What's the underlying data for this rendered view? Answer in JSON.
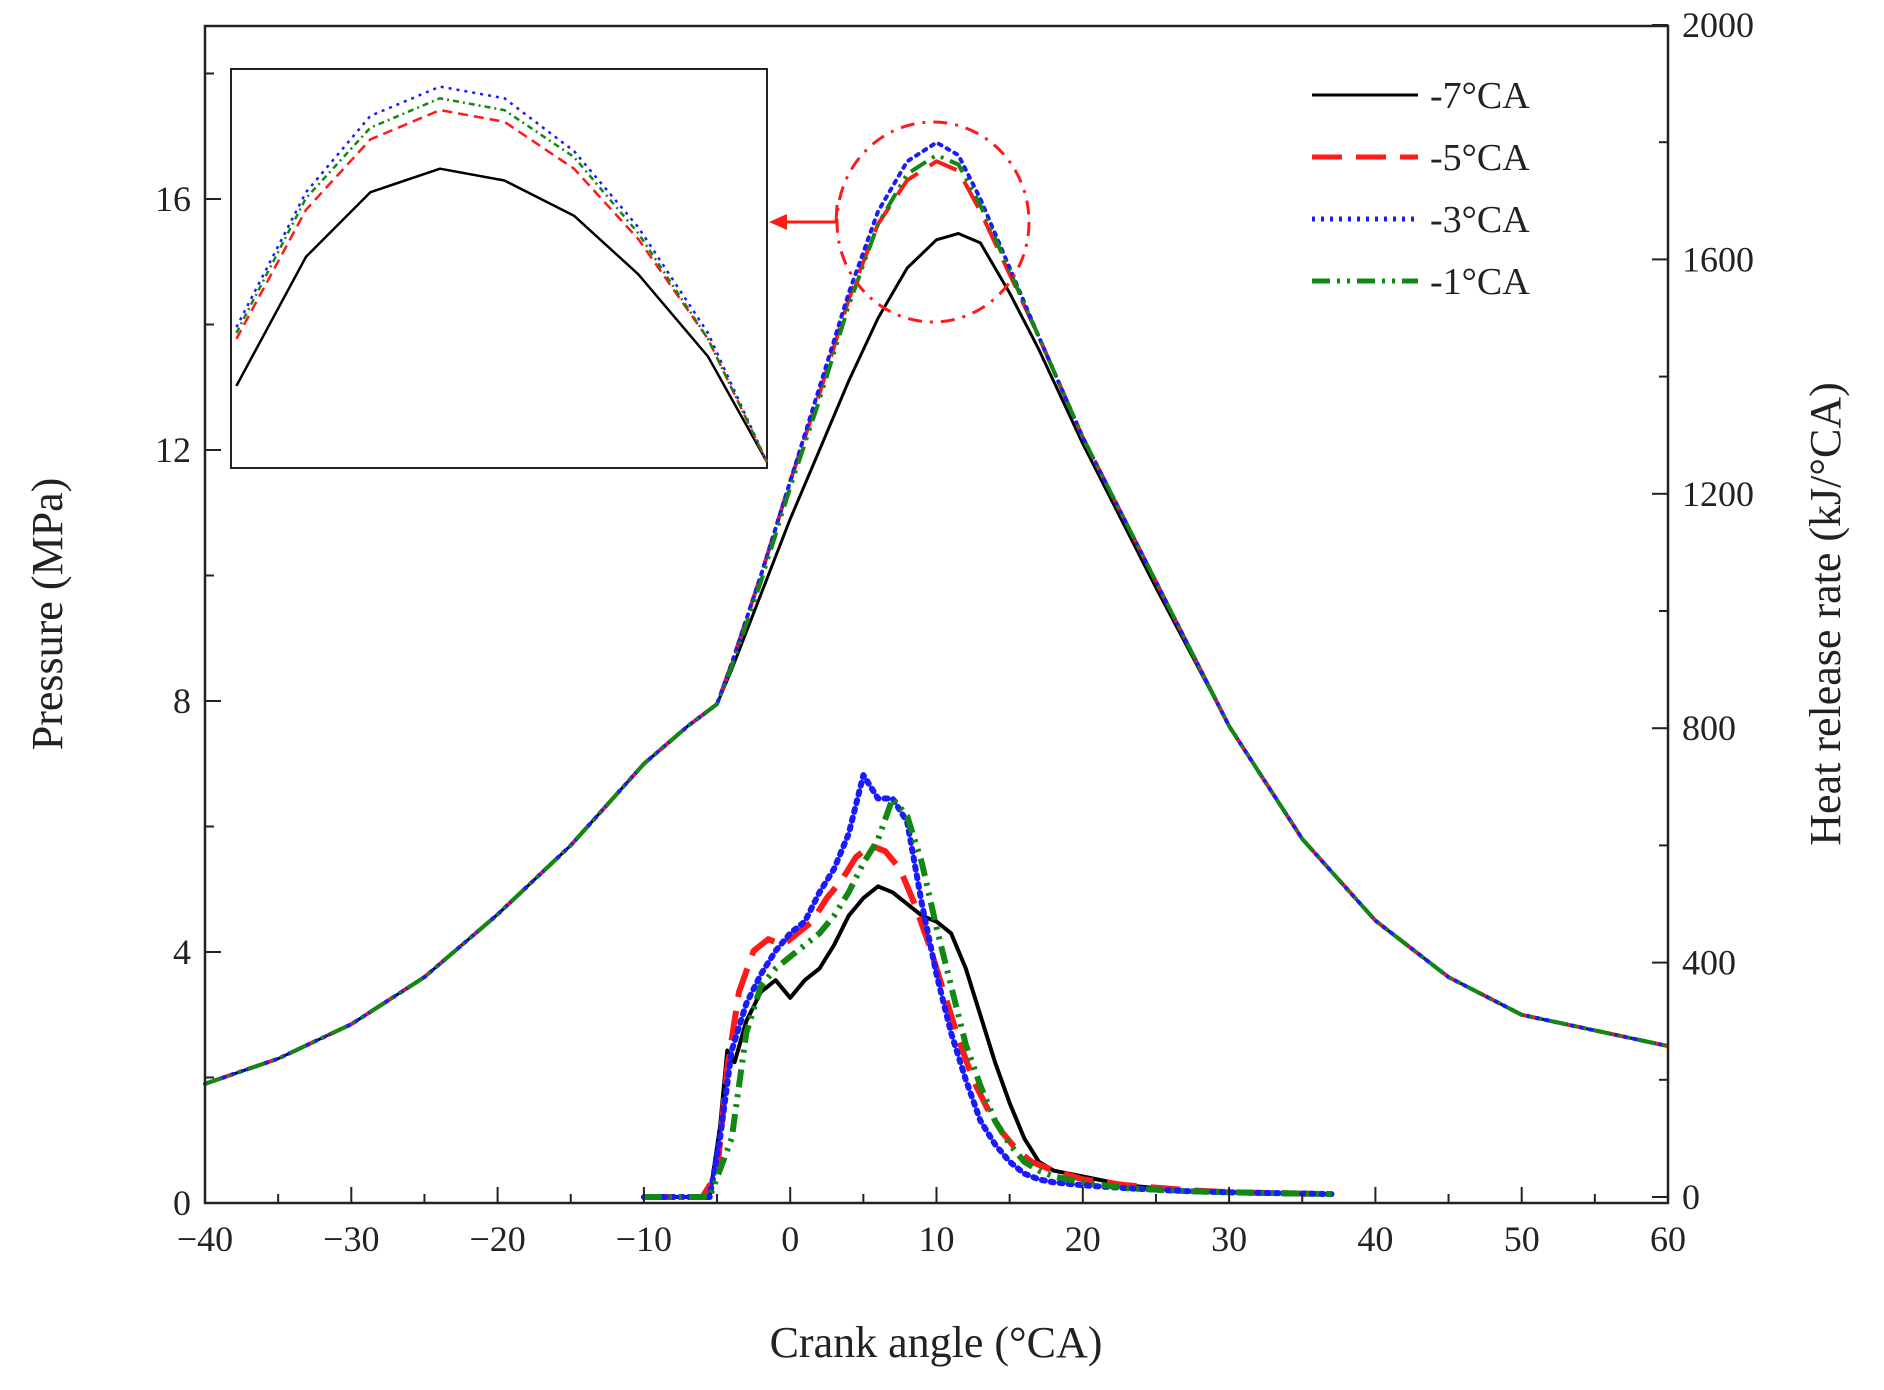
{
  "chart_data": {
    "type": "line",
    "xlabel": "Crank angle (°CA)",
    "ylabel_left": "Pressure (MPa)",
    "ylabel_right": "Heat release rate (kJ/°CA)",
    "xlim": [
      -40,
      60
    ],
    "ylim_left": [
      0,
      19
    ],
    "ylim_right": [
      0,
      2000
    ],
    "x_ticks": [
      -40,
      -30,
      -20,
      -10,
      0,
      10,
      20,
      30,
      40,
      50,
      60
    ],
    "x_tick_labels": [
      "−40",
      "−30",
      "−20",
      "−10",
      "0",
      "10",
      "20",
      "30",
      "40",
      "50",
      "60"
    ],
    "y_left_ticks": [
      0,
      4,
      8,
      12,
      16
    ],
    "y_left_tick_labels": [
      "0",
      "4",
      "8",
      "12",
      "16"
    ],
    "y_right_ticks": [
      0,
      400,
      800,
      1200,
      1600,
      2000
    ],
    "y_right_tick_labels": [
      "0",
      "400",
      "800",
      "1200",
      "1600",
      "2000"
    ],
    "legend_position": "top-right",
    "series": [
      {
        "name": "-7°CA",
        "color": "#000000",
        "dash": "solid",
        "pressure": {
          "x": [
            -40,
            -35,
            -30,
            -25,
            -20,
            -15,
            -10,
            -7,
            -5,
            -4,
            -2,
            0,
            2,
            4,
            6,
            8,
            10,
            11.5,
            13,
            15,
            17,
            20,
            25,
            30,
            35,
            40,
            45,
            50,
            55,
            60
          ],
          "y": [
            1.9,
            2.3,
            2.85,
            3.6,
            4.6,
            5.7,
            7.0,
            7.6,
            7.95,
            8.5,
            9.7,
            10.9,
            12.0,
            13.1,
            14.1,
            14.9,
            15.35,
            15.45,
            15.3,
            14.5,
            13.6,
            12.1,
            9.8,
            7.6,
            5.8,
            4.5,
            3.6,
            3.0,
            2.75,
            2.5
          ]
        },
        "hrr": {
          "x": [
            -10,
            -5.5,
            -4.8,
            -4.3,
            -3.8,
            -3,
            -2,
            -1,
            0,
            1,
            2,
            3,
            4,
            5,
            6,
            7,
            8,
            9,
            10,
            11,
            12,
            13,
            14,
            15,
            16,
            17,
            18,
            20,
            23,
            27,
            30,
            37
          ],
          "y": [
            0,
            0,
            120,
            250,
            230,
            300,
            350,
            370,
            340,
            370,
            390,
            430,
            480,
            510,
            530,
            520,
            500,
            480,
            470,
            450,
            390,
            310,
            230,
            160,
            100,
            60,
            45,
            35,
            20,
            10,
            8,
            5
          ]
        }
      },
      {
        "name": "-5°CA",
        "color": "#ff1a1a",
        "dash": "dashed",
        "pressure": {
          "x": [
            -40,
            -35,
            -30,
            -25,
            -20,
            -15,
            -10,
            -7,
            -5,
            -4,
            -2,
            0,
            2,
            4,
            6,
            8,
            10,
            11.5,
            13,
            15,
            17,
            20,
            25,
            30,
            35,
            40,
            45,
            50,
            55,
            60
          ],
          "y": [
            1.9,
            2.3,
            2.85,
            3.6,
            4.6,
            5.7,
            7.0,
            7.6,
            7.95,
            8.6,
            10.0,
            11.5,
            12.9,
            14.4,
            15.6,
            16.3,
            16.6,
            16.45,
            15.8,
            14.8,
            13.8,
            12.2,
            9.9,
            7.6,
            5.8,
            4.5,
            3.6,
            3.0,
            2.75,
            2.5
          ]
        },
        "hrr": {
          "x": [
            -10,
            -6,
            -5,
            -4.3,
            -3.5,
            -2.5,
            -1.5,
            -0.5,
            0.5,
            1.5,
            2.5,
            3.5,
            4.5,
            5.5,
            6.5,
            7.5,
            8.5,
            9.5,
            10.5,
            11.5,
            12.5,
            13.5,
            14.5,
            15.5,
            16.5,
            18,
            20,
            23,
            27,
            30,
            37
          ],
          "y": [
            0,
            0,
            40,
            220,
            350,
            420,
            440,
            430,
            450,
            470,
            510,
            540,
            580,
            600,
            590,
            560,
            500,
            430,
            350,
            270,
            200,
            150,
            110,
            80,
            60,
            45,
            30,
            20,
            12,
            8,
            5
          ]
        }
      },
      {
        "name": "-3°CA",
        "color": "#1a1aff",
        "dash": "dotted",
        "pressure": {
          "x": [
            -40,
            -35,
            -30,
            -25,
            -20,
            -15,
            -10,
            -7,
            -5,
            -4,
            -2,
            0,
            2,
            4,
            6,
            8,
            10,
            11.5,
            13,
            15,
            17,
            20,
            25,
            30,
            35,
            40,
            45,
            50,
            55,
            60
          ],
          "y": [
            1.9,
            2.3,
            2.85,
            3.6,
            4.6,
            5.7,
            7.0,
            7.6,
            7.95,
            8.6,
            10.0,
            11.5,
            13.0,
            14.5,
            15.8,
            16.6,
            16.9,
            16.7,
            16.0,
            14.9,
            13.8,
            12.2,
            9.9,
            7.6,
            5.8,
            4.5,
            3.6,
            3.0,
            2.75,
            2.5
          ]
        },
        "hrr": {
          "x": [
            -10,
            -5.5,
            -4.8,
            -4,
            -3,
            -2,
            -1,
            0,
            1,
            2,
            3,
            4,
            5,
            6,
            7,
            8,
            9,
            10,
            11,
            12,
            13,
            14,
            15,
            16,
            17,
            18,
            20,
            23,
            27,
            30,
            37
          ],
          "y": [
            0,
            0,
            100,
            250,
            330,
            380,
            420,
            450,
            470,
            520,
            560,
            620,
            720,
            680,
            680,
            640,
            500,
            380,
            280,
            200,
            130,
            90,
            60,
            40,
            30,
            25,
            20,
            15,
            10,
            8,
            5
          ]
        }
      },
      {
        "name": "-1°CA",
        "color": "#118811",
        "dash": "dash-dot-dot",
        "pressure": {
          "x": [
            -40,
            -35,
            -30,
            -25,
            -20,
            -15,
            -10,
            -7,
            -5,
            -4,
            -2,
            0,
            2,
            4,
            6,
            8,
            10,
            11.5,
            13,
            15,
            17,
            20,
            25,
            30,
            35,
            40,
            45,
            50,
            55,
            60
          ],
          "y": [
            1.9,
            2.3,
            2.85,
            3.6,
            4.6,
            5.7,
            7.0,
            7.6,
            7.95,
            8.55,
            9.9,
            11.4,
            12.8,
            14.3,
            15.6,
            16.4,
            16.7,
            16.55,
            15.9,
            14.85,
            13.8,
            12.2,
            9.9,
            7.6,
            5.8,
            4.5,
            3.6,
            3.0,
            2.75,
            2.5
          ]
        },
        "hrr": {
          "x": [
            -10,
            -5.5,
            -4,
            -3,
            -2,
            -1,
            0,
            1,
            2,
            3,
            4,
            5,
            6,
            7,
            8,
            9,
            10,
            11,
            12,
            13,
            14,
            15,
            16,
            17,
            18,
            20,
            23,
            27,
            30,
            37
          ],
          "y": [
            0,
            0,
            100,
            280,
            360,
            390,
            410,
            430,
            450,
            480,
            520,
            570,
            610,
            680,
            650,
            570,
            460,
            360,
            260,
            190,
            130,
            90,
            60,
            45,
            35,
            25,
            15,
            10,
            8,
            5
          ]
        }
      }
    ],
    "inset": {
      "description_x_range": [
        5,
        15
      ],
      "y_range": [
        13.8,
        17.2
      ]
    }
  }
}
